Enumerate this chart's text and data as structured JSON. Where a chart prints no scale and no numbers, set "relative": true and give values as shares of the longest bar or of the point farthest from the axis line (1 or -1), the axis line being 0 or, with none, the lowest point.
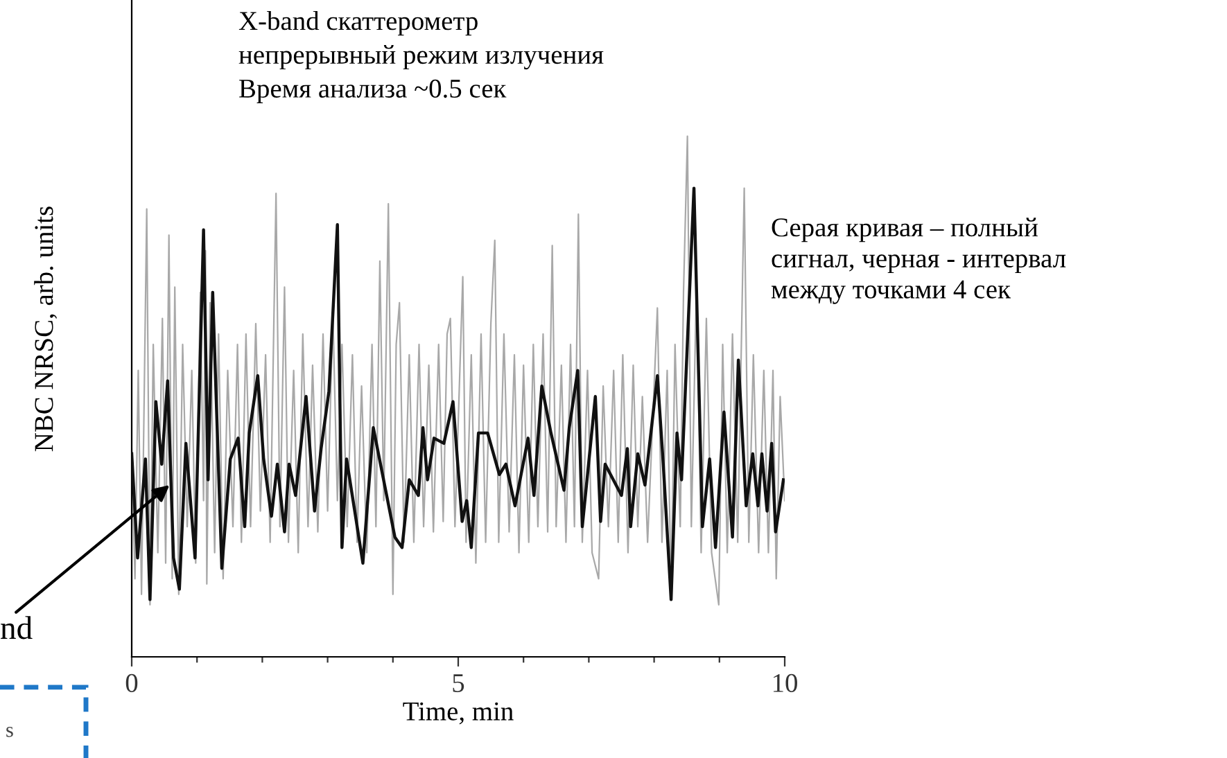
{
  "chart_data": {
    "type": "line",
    "relative": true,
    "xlabel": "Time, min",
    "ylabel": "NBC NRSC, arb. units",
    "xlim": [
      0,
      10
    ],
    "xticks": [
      0,
      {
        "value": 1,
        "label": null
      },
      {
        "value": 2,
        "label": null
      },
      {
        "value": 3,
        "label": null
      },
      {
        "value": 4,
        "label": null
      },
      5,
      {
        "value": 6,
        "label": null
      },
      {
        "value": 7,
        "label": null
      },
      {
        "value": 8,
        "label": null
      },
      {
        "value": 9,
        "label": null
      },
      10
    ],
    "grid": false,
    "legend": false,
    "marker": "none",
    "line_style": "solid",
    "annotations": [
      "X-band скаттерометр\nнепрерывный режим излучения\nВремя анализа ~0.5 сек",
      "Серая кривая – полный\nсигнал, черная - интервал\nмежду точками 4 сек",
      {
        "text": "nd",
        "x": 0.58,
        "y": 0.33
      },
      "s"
    ],
    "series": [
      {
        "color": "#a8a8a8",
        "x": [
          0.0,
          0.05,
          0.1,
          0.15,
          0.23,
          0.28,
          0.33,
          0.4,
          0.47,
          0.52,
          0.57,
          0.62,
          0.66,
          0.72,
          0.78,
          0.85,
          0.92,
          0.98,
          1.05,
          1.1,
          1.13,
          1.15,
          1.2,
          1.27,
          1.33,
          1.4,
          1.47,
          1.55,
          1.62,
          1.68,
          1.75,
          1.82,
          1.9,
          1.97,
          2.05,
          2.12,
          2.21,
          2.27,
          2.34,
          2.4,
          2.48,
          2.55,
          2.62,
          2.7,
          2.77,
          2.85,
          2.93,
          3.0,
          3.08,
          3.15,
          3.22,
          3.3,
          3.38,
          3.45,
          3.52,
          3.6,
          3.68,
          3.74,
          3.8,
          3.86,
          3.93,
          4.0,
          4.05,
          4.1,
          4.17,
          4.25,
          4.32,
          4.4,
          4.47,
          4.55,
          4.62,
          4.7,
          4.77,
          4.83,
          4.88,
          4.95,
          5.07,
          5.12,
          5.2,
          5.27,
          5.35,
          5.42,
          5.5,
          5.56,
          5.62,
          5.7,
          5.78,
          5.86,
          5.93,
          6.0,
          6.08,
          6.15,
          6.22,
          6.3,
          6.37,
          6.44,
          6.5,
          6.58,
          6.65,
          6.72,
          6.78,
          6.84,
          6.9,
          6.98,
          7.05,
          7.15,
          7.22,
          7.3,
          7.38,
          7.45,
          7.52,
          7.6,
          7.68,
          7.75,
          7.82,
          7.9,
          8.05,
          8.12,
          8.2,
          8.26,
          8.32,
          8.4,
          8.45,
          8.51,
          8.57,
          8.65,
          8.72,
          8.8,
          8.88,
          8.99,
          9.05,
          9.12,
          9.2,
          9.28,
          9.38,
          9.45,
          9.52,
          9.6,
          9.68,
          9.75,
          9.82,
          9.87,
          9.93,
          10.0
        ],
        "values": [
          0.4,
          0.15,
          0.55,
          0.12,
          0.86,
          0.1,
          0.6,
          0.2,
          0.65,
          0.18,
          0.81,
          0.15,
          0.71,
          0.12,
          0.6,
          0.25,
          0.55,
          0.18,
          0.7,
          0.3,
          0.78,
          0.14,
          0.68,
          0.2,
          0.62,
          0.15,
          0.55,
          0.25,
          0.6,
          0.22,
          0.62,
          0.25,
          0.64,
          0.28,
          0.58,
          0.22,
          0.89,
          0.25,
          0.71,
          0.22,
          0.55,
          0.2,
          0.62,
          0.25,
          0.56,
          0.24,
          0.62,
          0.28,
          0.66,
          0.3,
          0.6,
          0.25,
          0.58,
          0.22,
          0.52,
          0.2,
          0.6,
          0.25,
          0.76,
          0.3,
          0.87,
          0.12,
          0.6,
          0.68,
          0.22,
          0.58,
          0.22,
          0.6,
          0.25,
          0.56,
          0.24,
          0.6,
          0.26,
          0.62,
          0.65,
          0.25,
          0.73,
          0.22,
          0.58,
          0.18,
          0.62,
          0.22,
          0.64,
          0.8,
          0.22,
          0.62,
          0.24,
          0.58,
          0.2,
          0.56,
          0.22,
          0.6,
          0.25,
          0.62,
          0.24,
          0.79,
          0.25,
          0.56,
          0.22,
          0.6,
          0.25,
          0.85,
          0.22,
          0.55,
          0.2,
          0.15,
          0.52,
          0.25,
          0.55,
          0.22,
          0.58,
          0.2,
          0.56,
          0.25,
          0.5,
          0.22,
          0.67,
          0.22,
          0.55,
          0.12,
          0.6,
          0.25,
          0.7,
          1.0,
          0.25,
          0.72,
          0.2,
          0.65,
          0.2,
          0.1,
          0.6,
          0.2,
          0.62,
          0.22,
          0.9,
          0.22,
          0.58,
          0.2,
          0.55,
          0.2,
          0.55,
          0.15,
          0.5,
          0.3
        ]
      },
      {
        "color": "#111111",
        "x": [
          0,
          0.09,
          0.21,
          0.28,
          0.37,
          0.46,
          0.55,
          0.64,
          0.73,
          0.83,
          0.97,
          1.1,
          1.17,
          1.24,
          1.38,
          1.51,
          1.63,
          1.73,
          1.8,
          1.93,
          2.02,
          2.14,
          2.23,
          2.34,
          2.41,
          2.51,
          2.67,
          2.8,
          2.9,
          3.02,
          3.15,
          3.22,
          3.29,
          3.54,
          3.7,
          4.03,
          4.14,
          4.25,
          4.39,
          4.46,
          4.53,
          4.63,
          4.78,
          4.92,
          5.06,
          5.13,
          5.2,
          5.31,
          5.45,
          5.63,
          5.73,
          5.87,
          6.07,
          6.16,
          6.28,
          6.42,
          6.62,
          6.7,
          6.83,
          6.9,
          7.1,
          7.18,
          7.25,
          7.5,
          7.59,
          7.64,
          7.75,
          7.86,
          8.05,
          8.14,
          8.26,
          8.35,
          8.42,
          8.61,
          8.74,
          8.85,
          8.94,
          9.07,
          9.2,
          9.29,
          9.41,
          9.51,
          9.59,
          9.65,
          9.73,
          9.8,
          9.86,
          9.98
        ],
        "values": [
          0.39,
          0.19,
          0.38,
          0.11,
          0.49,
          0.37,
          0.53,
          0.19,
          0.13,
          0.41,
          0.19,
          0.82,
          0.34,
          0.7,
          0.17,
          0.38,
          0.42,
          0.25,
          0.43,
          0.54,
          0.38,
          0.27,
          0.37,
          0.24,
          0.37,
          0.31,
          0.5,
          0.28,
          0.4,
          0.51,
          0.83,
          0.21,
          0.38,
          0.18,
          0.44,
          0.23,
          0.21,
          0.34,
          0.31,
          0.44,
          0.34,
          0.42,
          0.41,
          0.49,
          0.26,
          0.3,
          0.21,
          0.43,
          0.43,
          0.35,
          0.37,
          0.29,
          0.42,
          0.31,
          0.52,
          0.43,
          0.32,
          0.44,
          0.55,
          0.25,
          0.5,
          0.26,
          0.37,
          0.31,
          0.4,
          0.25,
          0.39,
          0.33,
          0.54,
          0.37,
          0.11,
          0.43,
          0.34,
          0.9,
          0.25,
          0.38,
          0.21,
          0.47,
          0.23,
          0.57,
          0.29,
          0.39,
          0.29,
          0.39,
          0.28,
          0.41,
          0.24,
          0.34
        ]
      }
    ]
  }
}
